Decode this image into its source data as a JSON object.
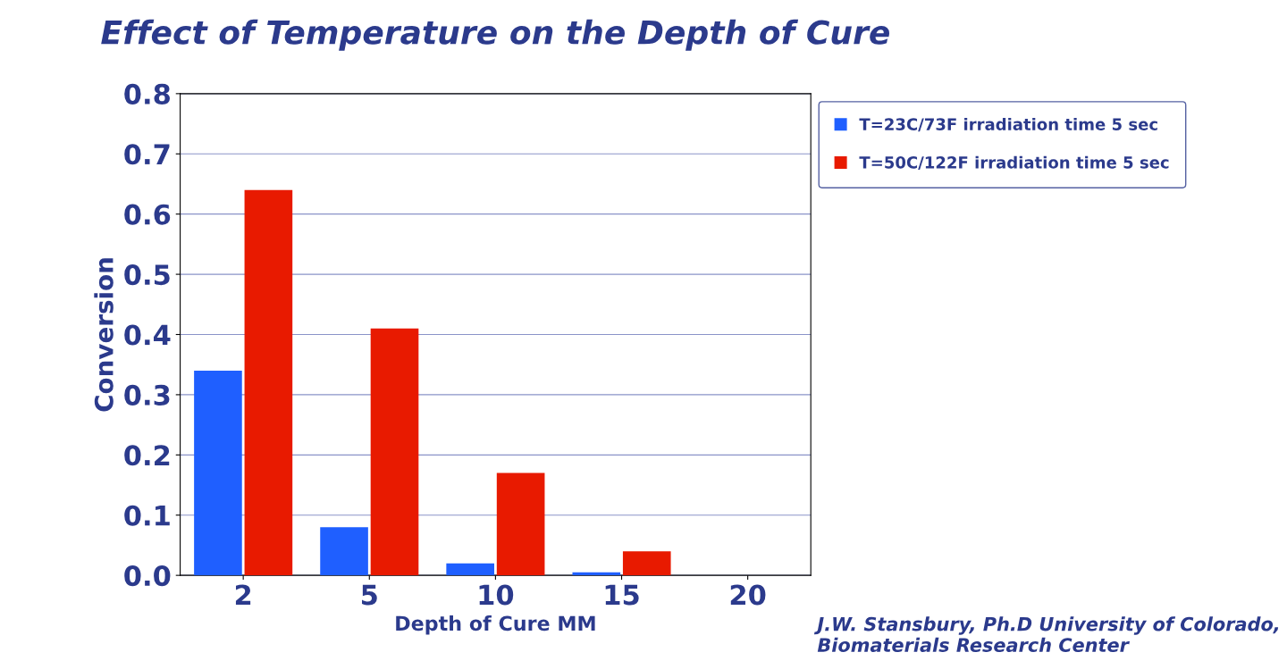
{
  "chart_data": {
    "type": "bar",
    "title": "Effect of Temperature on the Depth of Cure",
    "xlabel": "Depth of Cure MM",
    "ylabel": "Conversion",
    "categories": [
      "2",
      "5",
      "10",
      "15",
      "20"
    ],
    "series": [
      {
        "name": "T=23C/73F irradiation time 5 sec",
        "color": "#1f5fff",
        "values": [
          0.34,
          0.08,
          0.02,
          0.005,
          0
        ]
      },
      {
        "name": "T=50C/122F irradiation time 5 sec",
        "color": "#e81a00",
        "values": [
          0.64,
          0.41,
          0.17,
          0.04,
          0
        ]
      }
    ],
    "ylim": [
      0,
      0.8
    ],
    "yticks": [
      {
        "value": 0,
        "label": "0.0"
      },
      0.1,
      0.2,
      0.3,
      0.4,
      0.5,
      0.6,
      0.7,
      0.8
    ],
    "grid": "y",
    "legend": "top right",
    "annotations": [
      "J.W. Stansbury, Ph.D University of Colorado, Biomaterials Research Center"
    ]
  }
}
